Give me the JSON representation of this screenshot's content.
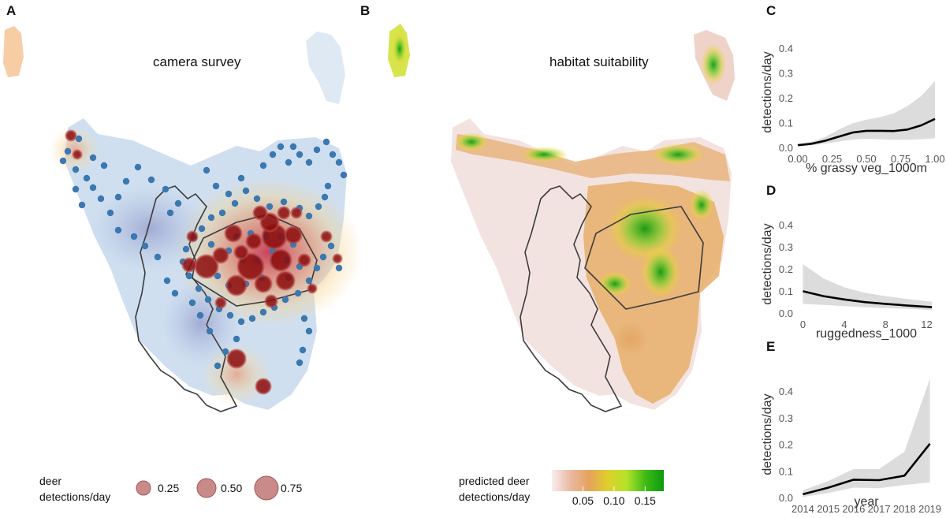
{
  "panels": {
    "a": {
      "letter": "A",
      "title": "camera survey",
      "legend": {
        "title_line1": "deer",
        "title_line2": "detections/day",
        "items": [
          {
            "value": 0.25,
            "label": "0.25"
          },
          {
            "value": 0.5,
            "label": "0.50"
          },
          {
            "value": 0.75,
            "label": "0.75"
          }
        ]
      }
    },
    "b": {
      "letter": "B",
      "title": "habitat suitability",
      "legend": {
        "title_line1": "predicted deer",
        "title_line2": "detections/day",
        "ticks": [
          {
            "value": 0.05,
            "label": "0.05"
          },
          {
            "value": 0.1,
            "label": "0.10"
          },
          {
            "value": 0.15,
            "label": "0.15"
          }
        ],
        "range": [
          0,
          0.18
        ],
        "colors": [
          "#f8eeee",
          "#eab9a2",
          "#e5a35c",
          "#e0cf2c",
          "#b5e22a",
          "#41bc15",
          "#0b9a0d"
        ]
      }
    },
    "c": {
      "letter": "C"
    },
    "d": {
      "letter": "D"
    },
    "e": {
      "letter": "E"
    }
  },
  "colors": {
    "detection": "#8b0a0a",
    "camera": "#3b78b0",
    "boundary": "#3c3c3c",
    "band": "#dcdcdc",
    "line": "#000000"
  },
  "chart_data": [
    {
      "type": "line",
      "panel": "C",
      "xlabel": "% grassy veg_1000m",
      "ylabel": "detections/day",
      "xlim": [
        0,
        1
      ],
      "ylim": [
        0,
        0.45
      ],
      "xticks": [
        {
          "value": 0,
          "label": "0.00"
        },
        {
          "value": 0.25,
          "label": "0.25"
        },
        {
          "value": 0.5,
          "label": "0.50"
        },
        {
          "value": 0.75,
          "label": "0.75"
        },
        {
          "value": 1,
          "label": "1.00"
        }
      ],
      "yticks": [
        {
          "value": 0,
          "label": "0.0"
        },
        {
          "value": 0.1,
          "label": "0.1"
        },
        {
          "value": 0.2,
          "label": "0.2"
        },
        {
          "value": 0.3,
          "label": "0.3"
        },
        {
          "value": 0.4,
          "label": "0.4"
        }
      ],
      "x": [
        0,
        0.1,
        0.2,
        0.3,
        0.4,
        0.5,
        0.6,
        0.7,
        0.8,
        0.9,
        1.0
      ],
      "y": [
        0.012,
        0.018,
        0.03,
        0.047,
        0.063,
        0.07,
        0.07,
        0.069,
        0.075,
        0.092,
        0.118
      ],
      "lower": [
        0.008,
        0.012,
        0.018,
        0.027,
        0.035,
        0.038,
        0.036,
        0.034,
        0.034,
        0.036,
        0.04
      ],
      "upper": [
        0.018,
        0.026,
        0.045,
        0.075,
        0.1,
        0.115,
        0.125,
        0.14,
        0.17,
        0.21,
        0.27
      ]
    },
    {
      "type": "line",
      "panel": "D",
      "xlabel": "ruggedness_1000",
      "ylabel": "detections/day",
      "xlim": [
        -0.5,
        12.8
      ],
      "ylim": [
        0,
        0.45
      ],
      "xticks": [
        {
          "value": 0,
          "label": "0"
        },
        {
          "value": 4,
          "label": "4"
        },
        {
          "value": 8,
          "label": "8"
        },
        {
          "value": 12,
          "label": "12"
        }
      ],
      "yticks": [
        {
          "value": 0,
          "label": "0.0"
        },
        {
          "value": 0.1,
          "label": "0.1"
        },
        {
          "value": 0.2,
          "label": "0.2"
        },
        {
          "value": 0.3,
          "label": "0.3"
        },
        {
          "value": 0.4,
          "label": "0.4"
        }
      ],
      "x": [
        0,
        2,
        4,
        6,
        8,
        10,
        12.5
      ],
      "y": [
        0.102,
        0.08,
        0.065,
        0.053,
        0.045,
        0.038,
        0.03
      ],
      "lower": [
        0.045,
        0.04,
        0.035,
        0.03,
        0.026,
        0.022,
        0.018
      ],
      "upper": [
        0.225,
        0.16,
        0.12,
        0.095,
        0.08,
        0.068,
        0.055
      ]
    },
    {
      "type": "line",
      "panel": "E",
      "xlabel": "year",
      "ylabel": "detections/day",
      "xlim": [
        2013.8,
        2019.2
      ],
      "ylim": [
        0,
        0.48
      ],
      "xticks": [
        {
          "value": 2014,
          "label": "2014"
        },
        {
          "value": 2015,
          "label": "2015"
        },
        {
          "value": 2016,
          "label": "2016"
        },
        {
          "value": 2017,
          "label": "2017"
        },
        {
          "value": 2018,
          "label": "2018"
        },
        {
          "value": 2019,
          "label": "2019"
        }
      ],
      "yticks": [
        {
          "value": 0,
          "label": "0.0"
        },
        {
          "value": 0.1,
          "label": "0.1"
        },
        {
          "value": 0.2,
          "label": "0.2"
        },
        {
          "value": 0.3,
          "label": "0.3"
        },
        {
          "value": 0.4,
          "label": "0.4"
        }
      ],
      "x": [
        2014,
        2015,
        2016,
        2017,
        2018,
        2019
      ],
      "y": [
        0.015,
        0.04,
        0.07,
        0.068,
        0.085,
        0.205
      ],
      "lower": [
        0.005,
        0.02,
        0.04,
        0.038,
        0.05,
        0.06
      ],
      "upper": [
        0.03,
        0.065,
        0.11,
        0.11,
        0.175,
        0.45
      ]
    }
  ]
}
